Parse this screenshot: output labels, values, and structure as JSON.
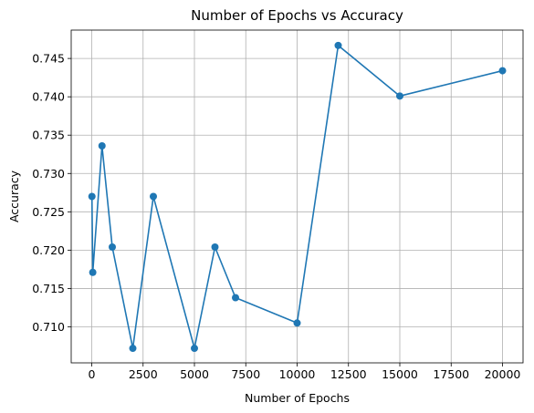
{
  "chart_data": {
    "type": "line",
    "title": "Number of Epochs vs Accuracy",
    "xlabel": "Number of Epochs",
    "ylabel": "Accuracy",
    "grid": true,
    "xlim": [
      -1000,
      21000
    ],
    "ylim": [
      0.7053,
      0.7487
    ],
    "xticks": [
      0,
      2500,
      5000,
      7500,
      10000,
      12500,
      15000,
      17500,
      20000
    ],
    "yticks": [
      0.71,
      0.715,
      0.72,
      0.725,
      0.73,
      0.735,
      0.74,
      0.745
    ],
    "colors": {
      "line": "#1f77b4",
      "grid": "#b0b0b0"
    },
    "series": [
      {
        "marker": "circle",
        "x": [
          10,
          50,
          500,
          1000,
          2000,
          3000,
          5000,
          6000,
          7000,
          10000,
          12000,
          15000,
          20000
        ],
        "y": [
          0.727,
          0.7171,
          0.7336,
          0.7204,
          0.7072,
          0.727,
          0.7072,
          0.7204,
          0.7138,
          0.7105,
          0.7467,
          0.7401,
          0.7434
        ]
      }
    ]
  }
}
